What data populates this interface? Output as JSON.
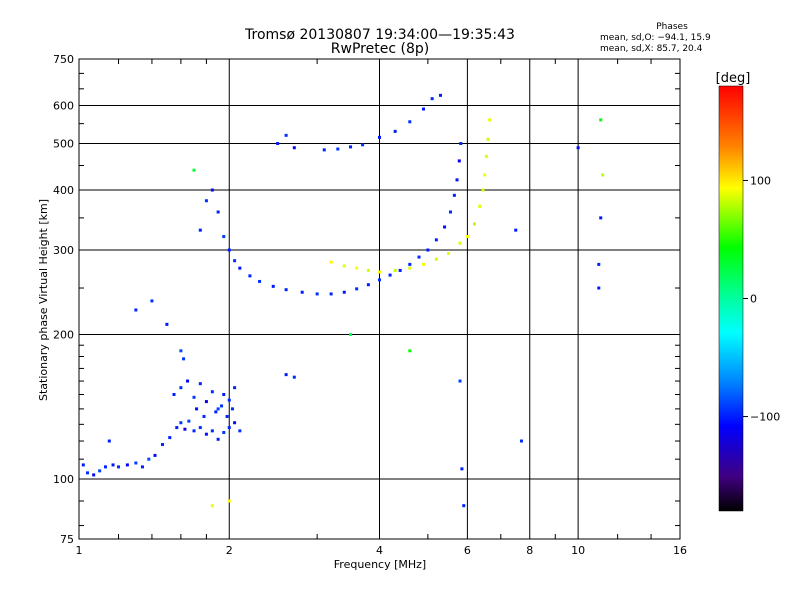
{
  "header": {
    "title_line1": "Tromsø 20130807 19:34:00—19:35:43",
    "title_line2": "RwPretec (8p)",
    "stats_title": "Phases",
    "stats_o": "mean, sd,O: −94.1, 15.9",
    "stats_x": "mean, sd,X:  85.7, 20.4"
  },
  "colorbar": {
    "unit_label": "[deg]",
    "range": [
      -180,
      180
    ],
    "ticks": [
      {
        "value": 100,
        "label": "100"
      },
      {
        "value": 0,
        "label": "0"
      },
      {
        "value": -100,
        "label": "−100"
      }
    ]
  },
  "chart_data": {
    "type": "scatter",
    "xlabel": "Frequency [MHz]",
    "ylabel": "Stationary phase Virtual Height [km]",
    "xscale": "log",
    "yscale": "log",
    "xlim": [
      1,
      16
    ],
    "ylim": [
      75,
      750
    ],
    "grid": true,
    "x_ticks": [
      1,
      2,
      4,
      6,
      8,
      10,
      16
    ],
    "x_tick_labels": [
      "1",
      "2",
      "4",
      "6",
      "8",
      "10",
      "16"
    ],
    "y_ticks": [
      75,
      100,
      200,
      300,
      400,
      500,
      600,
      750
    ],
    "y_tick_labels": [
      "75",
      "100",
      "200",
      "300",
      "400",
      "500",
      "600",
      "750"
    ],
    "color_encoding": "phase_deg",
    "series": [
      {
        "trace": "low_layer_ascent",
        "points": [
          [
            1.02,
            107
          ],
          [
            1.04,
            103
          ],
          [
            1.07,
            102
          ],
          [
            1.1,
            104
          ],
          [
            1.13,
            106
          ],
          [
            1.17,
            107
          ],
          [
            1.2,
            106
          ],
          [
            1.25,
            107
          ],
          [
            1.3,
            108
          ],
          [
            1.34,
            106
          ],
          [
            1.38,
            110
          ],
          [
            1.42,
            112
          ],
          [
            1.47,
            118
          ],
          [
            1.52,
            122
          ],
          [
            1.57,
            128
          ],
          [
            1.6,
            131
          ],
          [
            1.63,
            127
          ],
          [
            1.66,
            132
          ],
          [
            1.7,
            126
          ],
          [
            1.75,
            128
          ],
          [
            1.8,
            124
          ],
          [
            1.85,
            126
          ],
          [
            1.9,
            121
          ],
          [
            1.95,
            125
          ],
          [
            2.0,
            128
          ],
          [
            2.05,
            131
          ],
          [
            2.1,
            126
          ]
        ],
        "phases": [
          -100,
          -95,
          -105,
          -90,
          -98,
          -102,
          -96,
          -110,
          -92,
          -100,
          -88,
          -105,
          -97,
          -99,
          -101,
          -94,
          -120,
          -90,
          -98,
          -95,
          -103,
          -96,
          -100,
          -92,
          -98,
          -105,
          -95
        ]
      },
      {
        "trace": "e_region_cluster",
        "points": [
          [
            1.55,
            150
          ],
          [
            1.6,
            155
          ],
          [
            1.65,
            160
          ],
          [
            1.7,
            148
          ],
          [
            1.75,
            158
          ],
          [
            1.8,
            145
          ],
          [
            1.85,
            152
          ],
          [
            1.9,
            140
          ],
          [
            1.95,
            150
          ],
          [
            2.0,
            146
          ],
          [
            2.05,
            155
          ],
          [
            1.6,
            185
          ],
          [
            1.62,
            178
          ],
          [
            1.72,
            140
          ],
          [
            1.78,
            135
          ],
          [
            1.88,
            138
          ],
          [
            1.93,
            142
          ],
          [
            1.98,
            135
          ],
          [
            2.03,
            140
          ]
        ],
        "phases": [
          -100,
          -95,
          -110,
          -92,
          -98,
          -120,
          -96,
          -90,
          -101,
          -97,
          -99,
          -88,
          -93,
          -104,
          -96,
          -100,
          -94,
          -98,
          -95
        ]
      },
      {
        "trace": "f_region_cusp_o",
        "points": [
          [
            1.75,
            330
          ],
          [
            1.8,
            380
          ],
          [
            1.85,
            400
          ],
          [
            1.9,
            360
          ],
          [
            1.95,
            320
          ],
          [
            2.0,
            300
          ],
          [
            2.05,
            285
          ],
          [
            2.1,
            275
          ],
          [
            2.2,
            265
          ],
          [
            2.3,
            258
          ],
          [
            2.45,
            252
          ],
          [
            2.6,
            248
          ],
          [
            2.8,
            245
          ],
          [
            3.0,
            243
          ],
          [
            3.2,
            243
          ],
          [
            3.4,
            245
          ],
          [
            3.6,
            249
          ],
          [
            3.8,
            254
          ],
          [
            4.0,
            260
          ],
          [
            4.2,
            266
          ],
          [
            4.4,
            272
          ],
          [
            4.6,
            280
          ],
          [
            4.8,
            290
          ],
          [
            5.0,
            300
          ],
          [
            5.2,
            315
          ],
          [
            5.4,
            335
          ],
          [
            5.55,
            360
          ],
          [
            5.65,
            390
          ],
          [
            5.72,
            420
          ],
          [
            5.78,
            460
          ],
          [
            5.82,
            500
          ]
        ],
        "phases": [
          -100,
          -95,
          -105,
          -98,
          -92,
          -100,
          -96,
          -102,
          -99,
          -94,
          -101,
          -97,
          -100,
          -95,
          -98,
          -103,
          -96,
          -100,
          -94,
          -99,
          -101,
          -97,
          -95,
          -100,
          -98,
          -104,
          -96,
          -99,
          -102,
          -110,
          -97
        ]
      },
      {
        "trace": "f_region_x",
        "points": [
          [
            3.2,
            283
          ],
          [
            3.4,
            278
          ],
          [
            3.6,
            275
          ],
          [
            3.8,
            272
          ],
          [
            4.0,
            270
          ],
          [
            4.3,
            272
          ],
          [
            4.6,
            275
          ],
          [
            4.9,
            280
          ],
          [
            5.2,
            287
          ],
          [
            5.5,
            295
          ],
          [
            5.8,
            310
          ],
          [
            6.0,
            320
          ],
          [
            6.2,
            340
          ],
          [
            6.35,
            370
          ],
          [
            6.45,
            400
          ],
          [
            6.5,
            430
          ],
          [
            6.55,
            470
          ],
          [
            6.6,
            510
          ],
          [
            6.65,
            560
          ]
        ],
        "phases": [
          95,
          88,
          92,
          85,
          90,
          82,
          87,
          91,
          84,
          89,
          86,
          93,
          80,
          88,
          85,
          91,
          87,
          83,
          90
        ]
      },
      {
        "trace": "multihop",
        "points": [
          [
            2.5,
            500
          ],
          [
            2.6,
            520
          ],
          [
            2.7,
            490
          ],
          [
            3.1,
            485
          ],
          [
            3.3,
            487
          ],
          [
            3.5,
            492
          ],
          [
            3.7,
            497
          ],
          [
            4.0,
            515
          ],
          [
            4.3,
            530
          ],
          [
            4.6,
            555
          ],
          [
            4.9,
            590
          ],
          [
            5.1,
            620
          ],
          [
            5.3,
            630
          ]
        ],
        "phases": [
          -100,
          -95,
          -105,
          -98,
          -92,
          -100,
          -96,
          -102,
          -99,
          -94,
          -101,
          -97,
          -100
        ]
      },
      {
        "trace": "scattered",
        "points": [
          [
            1.15,
            120
          ],
          [
            1.3,
            225
          ],
          [
            1.4,
            235
          ],
          [
            1.5,
            210
          ],
          [
            1.7,
            440
          ],
          [
            1.85,
            88
          ],
          [
            2.0,
            90
          ],
          [
            2.6,
            165
          ],
          [
            2.7,
            163
          ],
          [
            3.5,
            200
          ],
          [
            4.6,
            185
          ],
          [
            5.8,
            160
          ],
          [
            5.85,
            105
          ],
          [
            5.9,
            88
          ],
          [
            7.5,
            330
          ],
          [
            7.7,
            120
          ],
          [
            10.0,
            490
          ],
          [
            11.0,
            250
          ],
          [
            11.0,
            280
          ],
          [
            11.1,
            350
          ],
          [
            11.2,
            430
          ],
          [
            11.1,
            560
          ]
        ],
        "phases": [
          -100,
          -98,
          -95,
          -102,
          30,
          90,
          95,
          -100,
          -96,
          20,
          45,
          -90,
          -100,
          -98,
          -100,
          -95,
          -105,
          -100,
          -98,
          -102,
          80,
          40
        ]
      }
    ]
  }
}
